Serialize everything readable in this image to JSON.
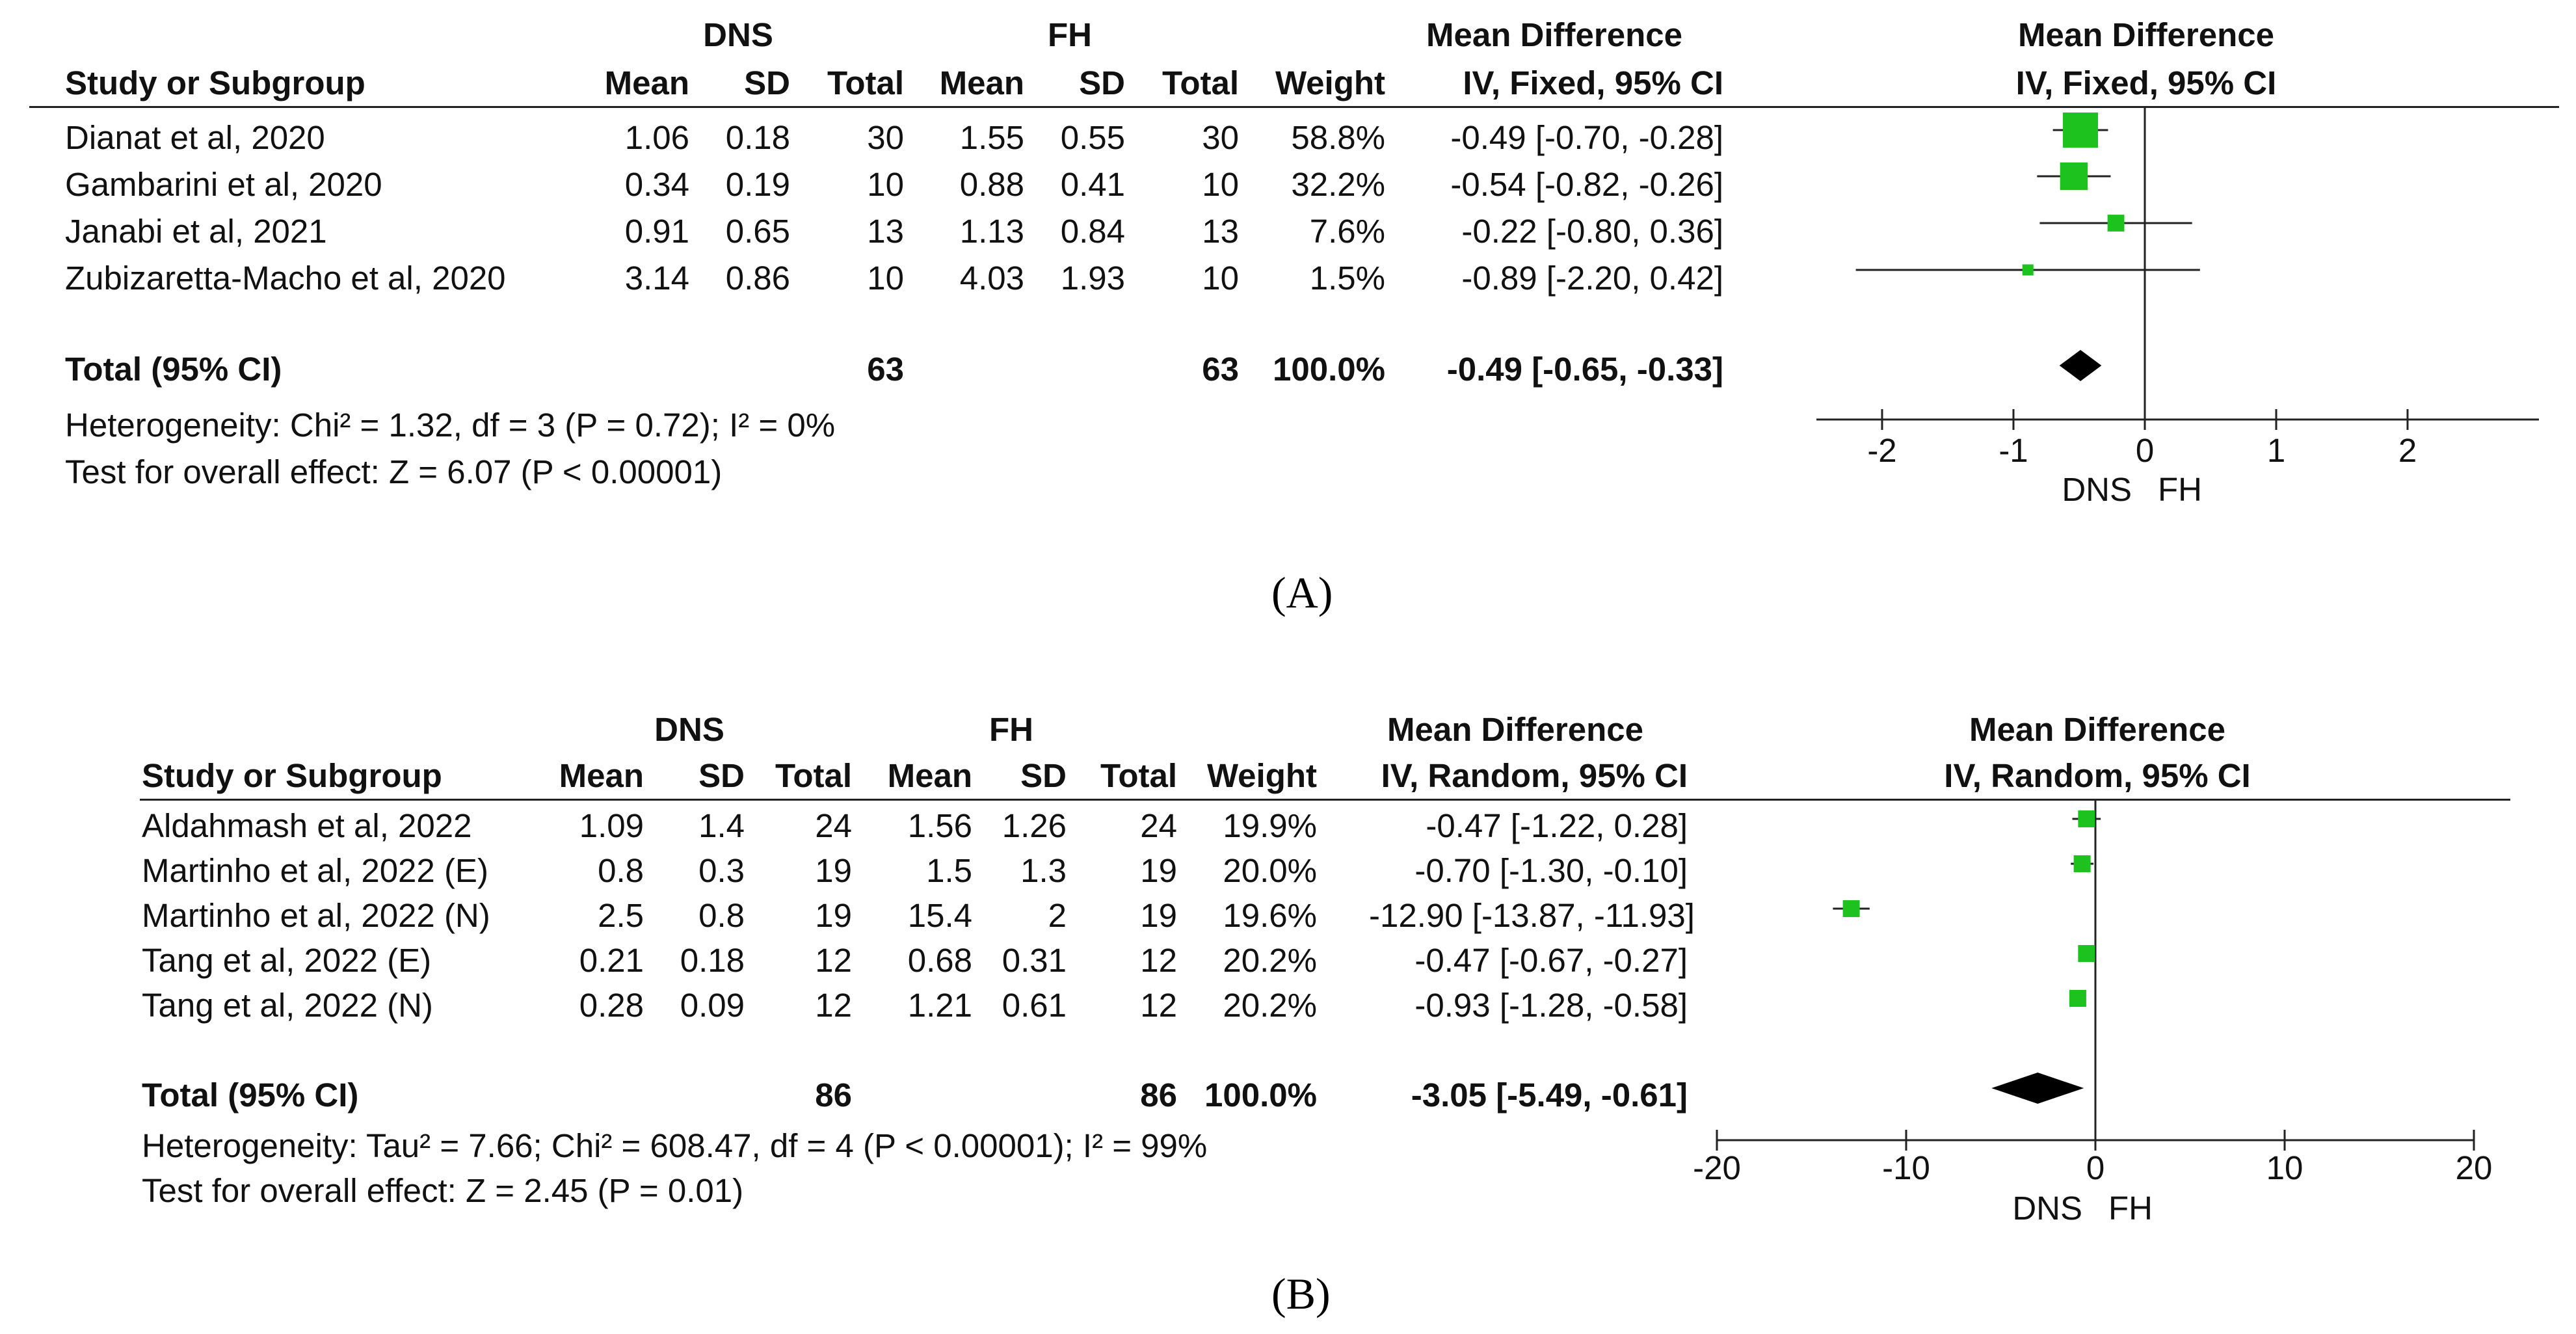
{
  "panels": [
    {
      "id": "A",
      "caption": "(A)",
      "group_headers": {
        "group1": "DNS",
        "group2": "FH",
        "md": "Mean Difference",
        "md_plot": "Mean Difference"
      },
      "columns": {
        "study": "Study or Subgroup",
        "mean1": "Mean",
        "sd1": "SD",
        "total1": "Total",
        "mean2": "Mean",
        "sd2": "SD",
        "total2": "Total",
        "weight": "Weight",
        "md_method": "IV, Fixed, 95% CI",
        "md_plot_method": "IV, Fixed, 95% CI"
      },
      "rows": [
        {
          "study": "Dianat et al, 2020",
          "mean1": "1.06",
          "sd1": "0.18",
          "total1": "30",
          "mean2": "1.55",
          "sd2": "0.55",
          "total2": "30",
          "weight": "58.8%",
          "ci_text": "-0.49 [-0.70, -0.28]"
        },
        {
          "study": "Gambarini et al, 2020",
          "mean1": "0.34",
          "sd1": "0.19",
          "total1": "10",
          "mean2": "0.88",
          "sd2": "0.41",
          "total2": "10",
          "weight": "32.2%",
          "ci_text": "-0.54 [-0.82, -0.26]"
        },
        {
          "study": "Janabi et al, 2021",
          "mean1": "0.91",
          "sd1": "0.65",
          "total1": "13",
          "mean2": "1.13",
          "sd2": "0.84",
          "total2": "13",
          "weight": "7.6%",
          "ci_text": "-0.22 [-0.80, 0.36]"
        },
        {
          "study": "Zubizaretta-Macho et al, 2020",
          "mean1": "3.14",
          "sd1": "0.86",
          "total1": "10",
          "mean2": "4.03",
          "sd2": "1.93",
          "total2": "10",
          "weight": "1.5%",
          "ci_text": "-0.89 [-2.20, 0.42]"
        }
      ],
      "total": {
        "label": "Total (95% CI)",
        "total1": "63",
        "total2": "63",
        "weight": "100.0%",
        "ci_text": "-0.49 [-0.65, -0.33]"
      },
      "heterogeneity": "Heterogeneity: Chi² = 1.32, df = 3 (P = 0.72); I² = 0%",
      "overall_effect": "Test for overall effect: Z = 6.07 (P < 0.00001)",
      "axis_labels": {
        "left": "DNS",
        "right": "FH"
      }
    },
    {
      "id": "B",
      "caption": "(B)",
      "group_headers": {
        "group1": "DNS",
        "group2": "FH",
        "md": "Mean Difference",
        "md_plot": "Mean Difference"
      },
      "columns": {
        "study": "Study or Subgroup",
        "mean1": "Mean",
        "sd1": "SD",
        "total1": "Total",
        "mean2": "Mean",
        "sd2": "SD",
        "total2": "Total",
        "weight": "Weight",
        "md_method": "IV, Random, 95% CI",
        "md_plot_method": "IV, Random, 95% CI"
      },
      "rows": [
        {
          "study": "Aldahmash et al, 2022",
          "mean1": "1.09",
          "sd1": "1.4",
          "total1": "24",
          "mean2": "1.56",
          "sd2": "1.26",
          "total2": "24",
          "weight": "19.9%",
          "ci_text": "-0.47 [-1.22, 0.28]"
        },
        {
          "study": "Martinho et al, 2022 (E)",
          "mean1": "0.8",
          "sd1": "0.3",
          "total1": "19",
          "mean2": "1.5",
          "sd2": "1.3",
          "total2": "19",
          "weight": "20.0%",
          "ci_text": "-0.70 [-1.30, -0.10]"
        },
        {
          "study": "Martinho et al, 2022 (N)",
          "mean1": "2.5",
          "sd1": "0.8",
          "total1": "19",
          "mean2": "15.4",
          "sd2": "2",
          "total2": "19",
          "weight": "19.6%",
          "ci_text": "-12.90 [-13.87, -11.93]"
        },
        {
          "study": "Tang et al, 2022 (E)",
          "mean1": "0.21",
          "sd1": "0.18",
          "total1": "12",
          "mean2": "0.68",
          "sd2": "0.31",
          "total2": "12",
          "weight": "20.2%",
          "ci_text": "-0.47 [-0.67, -0.27]"
        },
        {
          "study": "Tang et al, 2022 (N)",
          "mean1": "0.28",
          "sd1": "0.09",
          "total1": "12",
          "mean2": "1.21",
          "sd2": "0.61",
          "total2": "12",
          "weight": "20.2%",
          "ci_text": "-0.93 [-1.28, -0.58]"
        }
      ],
      "total": {
        "label": "Total (95% CI)",
        "total1": "86",
        "total2": "86",
        "weight": "100.0%",
        "ci_text": "-3.05 [-5.49, -0.61]"
      },
      "heterogeneity": "Heterogeneity: Tau² = 7.66; Chi² = 608.47, df = 4 (P < 0.00001); I² = 99%",
      "overall_effect": "Test for overall effect: Z = 2.45 (P = 0.01)",
      "axis_labels": {
        "left": "DNS",
        "right": "FH"
      }
    }
  ],
  "chart_data": [
    {
      "type": "forest",
      "title": "Mean Difference IV, Fixed, 95% CI",
      "xlim": [
        -2.5,
        3.0
      ],
      "xticks": [
        -2,
        -1,
        0,
        1,
        2
      ],
      "xtick_labels": [
        "-2",
        "-1",
        "0",
        "1",
        "2"
      ],
      "reference_line": 0,
      "marker_color": "#1ec21e",
      "studies": [
        {
          "label": "Dianat et al, 2020",
          "estimate": -0.49,
          "lower": -0.7,
          "upper": -0.28,
          "weight": 58.8
        },
        {
          "label": "Gambarini et al, 2020",
          "estimate": -0.54,
          "lower": -0.82,
          "upper": -0.26,
          "weight": 32.2
        },
        {
          "label": "Janabi et al, 2021",
          "estimate": -0.22,
          "lower": -0.8,
          "upper": 0.36,
          "weight": 7.6
        },
        {
          "label": "Zubizaretta-Macho et al, 2020",
          "estimate": -0.89,
          "lower": -2.2,
          "upper": 0.42,
          "weight": 1.5
        }
      ],
      "pooled": {
        "estimate": -0.49,
        "lower": -0.65,
        "upper": -0.33
      },
      "xlabel_left": "DNS",
      "xlabel_right": "FH"
    },
    {
      "type": "forest",
      "title": "Mean Difference IV, Random, 95% CI",
      "xlim": [
        -20,
        20
      ],
      "xticks": [
        -20,
        -10,
        0,
        10,
        20
      ],
      "xtick_labels": [
        "-20",
        "-10",
        "0",
        "10",
        "20"
      ],
      "reference_line": 0,
      "marker_color": "#1ec21e",
      "studies": [
        {
          "label": "Aldahmash et al, 2022",
          "estimate": -0.47,
          "lower": -1.22,
          "upper": 0.28,
          "weight": 19.9
        },
        {
          "label": "Martinho et al, 2022 (E)",
          "estimate": -0.7,
          "lower": -1.3,
          "upper": -0.1,
          "weight": 20.0
        },
        {
          "label": "Martinho et al, 2022 (N)",
          "estimate": -12.9,
          "lower": -13.87,
          "upper": -11.93,
          "weight": 19.6
        },
        {
          "label": "Tang et al, 2022 (E)",
          "estimate": -0.47,
          "lower": -0.67,
          "upper": -0.27,
          "weight": 20.2
        },
        {
          "label": "Tang et al, 2022 (N)",
          "estimate": -0.93,
          "lower": -1.28,
          "upper": -0.58,
          "weight": 20.2
        }
      ],
      "pooled": {
        "estimate": -3.05,
        "lower": -5.49,
        "upper": -0.61
      },
      "xlabel_left": "DNS",
      "xlabel_right": "FH"
    }
  ]
}
